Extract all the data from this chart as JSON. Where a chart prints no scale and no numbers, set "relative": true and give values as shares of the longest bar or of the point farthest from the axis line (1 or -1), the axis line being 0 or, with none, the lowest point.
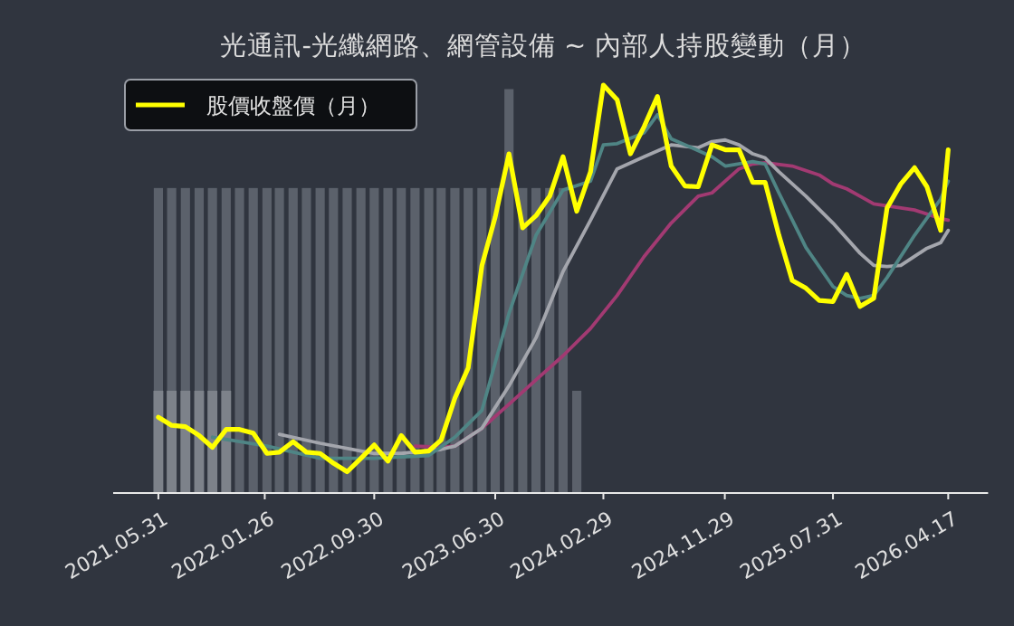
{
  "chart_data": {
    "type": "line",
    "title": "光通訊-光纖網路、網管設備 ~ 內部人持股變動（月）",
    "relative": true,
    "legend": "top left",
    "xlim": [
      "2021-02-18",
      "2026-07-16"
    ],
    "xticks": [
      {
        "value": "2021-05-31",
        "label": "2021.05.31"
      },
      {
        "value": "2022-01-26",
        "label": "2022.01.26"
      },
      {
        "value": "2022-09-30",
        "label": "2022.09.30"
      },
      {
        "value": "2023-06-30",
        "label": "2023.06.30"
      },
      {
        "value": "2024-02-29",
        "label": "2024.02.29"
      },
      {
        "value": "2024-11-29",
        "label": "2024.11.29"
      },
      {
        "value": "2025-07-31",
        "label": "2025.07.31"
      },
      {
        "value": "2026-04-17",
        "label": "2026.04.17"
      }
    ],
    "series": [
      {
        "type": "bar",
        "color": "#5b616b",
        "x": [
          "2021-05-31",
          "2021-06-30",
          "2021-07-31",
          "2021-08-31",
          "2021-09-30",
          "2021-10-31",
          "2021-11-30",
          "2021-12-31",
          "2022-01-31",
          "2022-02-28",
          "2022-03-31",
          "2022-04-30",
          "2022-05-31",
          "2022-06-30",
          "2022-07-31",
          "2022-08-31",
          "2022-09-30",
          "2022-10-31",
          "2022-11-30",
          "2022-12-31",
          "2023-01-31",
          "2023-02-28",
          "2023-03-31",
          "2023-04-30",
          "2023-05-31",
          "2023-06-30",
          "2023-07-31",
          "2023-08-31",
          "2023-09-30",
          "2023-10-31",
          "2023-11-30",
          "2023-12-31"
        ],
        "values": [
          0.747,
          0.747,
          0.747,
          0.747,
          0.747,
          0.747,
          0.747,
          0.747,
          0.747,
          0.747,
          0.747,
          0.747,
          0.747,
          0.747,
          0.747,
          0.747,
          0.747,
          0.747,
          0.747,
          0.747,
          0.747,
          0.747,
          0.747,
          0.747,
          0.747,
          0.747,
          0.99,
          0.747,
          0.747,
          0.747,
          0.747,
          0.249
        ]
      },
      {
        "type": "bar",
        "color": "#7d828a",
        "x": [
          "2021-05-31",
          "2021-06-30",
          "2021-07-31",
          "2021-08-31",
          "2021-09-30",
          "2021-10-31"
        ],
        "values": [
          0.249,
          0.249,
          0.249,
          0.249,
          0.249,
          0.249
        ]
      },
      {
        "type": "line",
        "color": "#a23a72",
        "x": [
          "2022-12-31",
          "2023-02-28",
          "2023-03-31",
          "2023-05-31",
          "2023-07-31",
          "2023-09-30",
          "2023-11-30",
          "2024-01-31",
          "2024-03-31",
          "2024-05-31",
          "2024-07-31",
          "2024-09-30",
          "2024-10-31",
          "2024-11-30",
          "2024-12-31",
          "2025-01-31",
          "2025-02-28",
          "2025-04-30",
          "2025-06-30",
          "2025-07-31",
          "2025-08-31",
          "2025-09-30",
          "2025-10-31",
          "2026-01-31",
          "2026-03-31",
          "2026-04-17"
        ],
        "values": [
          0.113,
          0.11,
          0.113,
          0.157,
          0.216,
          0.276,
          0.335,
          0.402,
          0.483,
          0.579,
          0.661,
          0.727,
          0.735,
          0.764,
          0.794,
          0.806,
          0.809,
          0.801,
          0.779,
          0.757,
          0.745,
          0.727,
          0.708,
          0.693,
          0.672,
          0.668
        ]
      },
      {
        "type": "line",
        "color": "#a4a6ad",
        "x": [
          "2022-02-28",
          "2022-05-31",
          "2022-09-30",
          "2022-11-30",
          "2023-02-28",
          "2023-03-31",
          "2023-05-31",
          "2023-07-31",
          "2023-09-30",
          "2023-11-30",
          "2024-01-31",
          "2024-03-31",
          "2024-05-31",
          "2024-07-31",
          "2024-09-30",
          "2024-10-31",
          "2024-11-30",
          "2024-12-31",
          "2025-01-31",
          "2025-02-28",
          "2025-03-31",
          "2025-05-31",
          "2025-07-31",
          "2025-09-30",
          "2025-10-31",
          "2025-11-30",
          "2025-12-31",
          "2026-01-31",
          "2026-02-28",
          "2026-03-31",
          "2026-04-17"
        ],
        "values": [
          0.142,
          0.12,
          0.095,
          0.095,
          0.105,
          0.113,
          0.157,
          0.261,
          0.379,
          0.542,
          0.668,
          0.794,
          0.824,
          0.853,
          0.846,
          0.861,
          0.865,
          0.853,
          0.831,
          0.821,
          0.787,
          0.727,
          0.661,
          0.587,
          0.557,
          0.554,
          0.557,
          0.579,
          0.599,
          0.613,
          0.643
        ]
      },
      {
        "type": "line",
        "color": "#4f8585",
        "x": [
          "2021-09-30",
          "2022-01-31",
          "2022-05-31",
          "2022-09-30",
          "2023-01-31",
          "2023-03-31",
          "2023-05-31",
          "2023-07-31",
          "2023-09-30",
          "2023-11-30",
          "2024-01-31",
          "2024-02-29",
          "2024-03-31",
          "2024-05-31",
          "2024-06-30",
          "2024-07-31",
          "2024-09-30",
          "2024-10-31",
          "2024-11-30",
          "2025-01-31",
          "2025-02-28",
          "2025-03-31",
          "2025-05-31",
          "2025-07-31",
          "2025-08-31",
          "2025-09-30",
          "2025-10-31",
          "2025-11-30",
          "2026-01-31",
          "2026-03-31",
          "2026-04-17"
        ],
        "values": [
          0.135,
          0.113,
          0.083,
          0.083,
          0.09,
          0.135,
          0.201,
          0.439,
          0.631,
          0.742,
          0.764,
          0.853,
          0.856,
          0.883,
          0.927,
          0.868,
          0.839,
          0.824,
          0.801,
          0.812,
          0.806,
          0.735,
          0.601,
          0.505,
          0.483,
          0.476,
          0.483,
          0.527,
          0.631,
          0.72,
          0.764
        ]
      },
      {
        "name": "股價收盤價（月）",
        "color": "#ffff00",
        "x": [
          "2021-05-31",
          "2021-06-30",
          "2021-07-31",
          "2021-08-31",
          "2021-09-30",
          "2021-10-31",
          "2021-11-30",
          "2021-12-31",
          "2022-01-31",
          "2022-02-28",
          "2022-03-31",
          "2022-04-30",
          "2022-05-31",
          "2022-06-30",
          "2022-07-31",
          "2022-08-31",
          "2022-09-30",
          "2022-10-31",
          "2022-11-30",
          "2022-12-31",
          "2023-01-31",
          "2023-02-28",
          "2023-03-31",
          "2023-04-30",
          "2023-05-31",
          "2023-06-30",
          "2023-07-31",
          "2023-08-31",
          "2023-09-30",
          "2023-10-31",
          "2023-11-30",
          "2023-12-31",
          "2024-01-31",
          "2024-02-29",
          "2024-03-31",
          "2024-04-30",
          "2024-05-31",
          "2024-06-30",
          "2024-07-31",
          "2024-08-31",
          "2024-09-30",
          "2024-10-31",
          "2024-11-30",
          "2024-12-31",
          "2025-01-31",
          "2025-02-28",
          "2025-03-31",
          "2025-04-30",
          "2025-05-31",
          "2025-06-30",
          "2025-07-31",
          "2025-08-31",
          "2025-09-30",
          "2025-10-31",
          "2025-11-30",
          "2025-12-31",
          "2026-01-31",
          "2026-02-28",
          "2026-03-31",
          "2026-04-17"
        ],
        "values": [
          0.184,
          0.164,
          0.161,
          0.139,
          0.11,
          0.154,
          0.154,
          0.145,
          0.095,
          0.098,
          0.124,
          0.098,
          0.095,
          0.071,
          0.05,
          0.083,
          0.116,
          0.076,
          0.139,
          0.098,
          0.101,
          0.128,
          0.231,
          0.305,
          0.557,
          0.676,
          0.831,
          0.649,
          0.679,
          0.727,
          0.824,
          0.69,
          0.787,
          1,
          0.964,
          0.831,
          0.898,
          0.972,
          0.801,
          0.752,
          0.75,
          0.853,
          0.841,
          0.841,
          0.761,
          0.761,
          0.631,
          0.52,
          0.501,
          0.471,
          0.468,
          0.535,
          0.456,
          0.476,
          0.698,
          0.757,
          0.797,
          0.75,
          0.643,
          0.841
        ]
      }
    ]
  }
}
